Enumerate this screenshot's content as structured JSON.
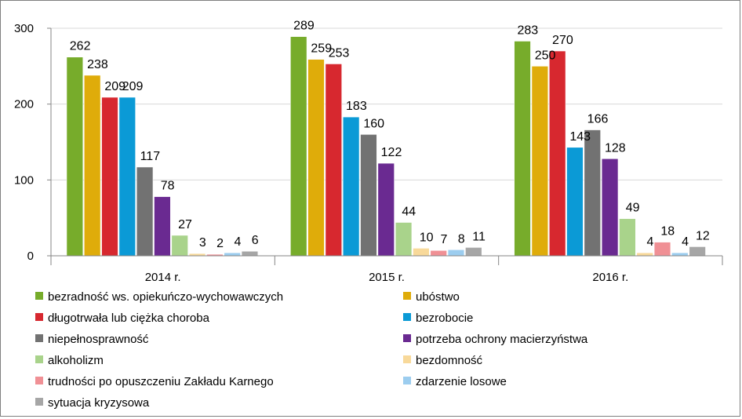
{
  "chart_data": {
    "type": "bar",
    "categories": [
      "2014 r.",
      "2015 r.",
      "2016 r."
    ],
    "ylim": [
      0,
      300
    ],
    "yticks": [
      0,
      100,
      200,
      300
    ],
    "grid": true,
    "legend_position": "bottom",
    "series": [
      {
        "name": "bezradność ws. opiekuńczo-wychowawczych",
        "color": "#77ac2b",
        "values": [
          262,
          289,
          283
        ]
      },
      {
        "name": "ubóstwo",
        "color": "#dfac0a",
        "values": [
          238,
          259,
          250
        ]
      },
      {
        "name": "długotrwała lub ciężka choroba",
        "color": "#d7282f",
        "values": [
          209,
          253,
          270
        ]
      },
      {
        "name": "bezrobocie",
        "color": "#0b9ad6",
        "values": [
          209,
          183,
          143
        ]
      },
      {
        "name": "niepełnosprawność",
        "color": "#727272",
        "values": [
          117,
          160,
          166
        ]
      },
      {
        "name": "potrzeba ochrony macierzyństwa",
        "color": "#6a2a91",
        "values": [
          78,
          122,
          128
        ]
      },
      {
        "name": "alkoholizm",
        "color": "#a9d38b",
        "values": [
          27,
          44,
          49
        ]
      },
      {
        "name": "bezdomność",
        "color": "#f8d99a",
        "values": [
          3,
          10,
          4
        ]
      },
      {
        "name": "trudności po opuszczeniu Zakładu Karnego",
        "color": "#f09095",
        "values": [
          2,
          7,
          18
        ]
      },
      {
        "name": "zdarzenie losowe",
        "color": "#9ccdef",
        "values": [
          4,
          8,
          4
        ]
      },
      {
        "name": "sytuacja kryzysowa",
        "color": "#a6a6a6",
        "values": [
          6,
          11,
          12
        ]
      }
    ]
  }
}
